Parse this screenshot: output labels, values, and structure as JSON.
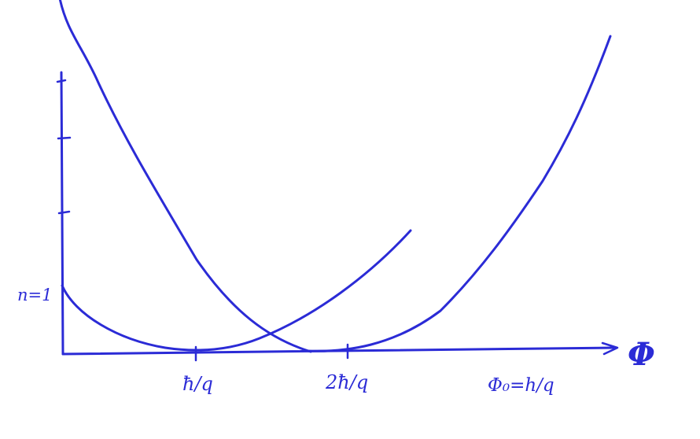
{
  "colors": {
    "ink": "#2b2bd6",
    "background": "#ffffff"
  },
  "labels": {
    "y_marker": "n=1",
    "tick_1": "ħ/q",
    "tick_2": "2ħ/q",
    "tick_3": "Φ₀=h/q",
    "x_axis": "Φ"
  }
}
